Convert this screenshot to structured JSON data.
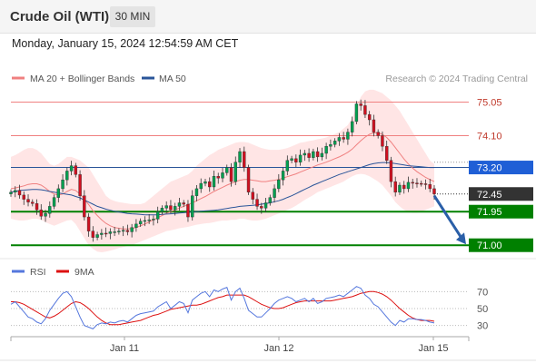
{
  "header": {
    "instrument": "Crude Oil (WTI)",
    "timeframe": "30 MIN"
  },
  "datetime": "Monday, January 15, 2024 12:54:59 AM CET",
  "colors": {
    "bollinger": "#f08080",
    "ma50": "#2a5599",
    "up": "#00a050",
    "down": "#d01020",
    "support": "#008000",
    "resistance": "#f08080",
    "current": "#333333",
    "rsi": "#5577dd",
    "rsi_ma": "#dd1111"
  },
  "chart_data": [
    {
      "type": "candlestick",
      "title": "",
      "legend": [
        "MA 20 + Bollinger Bands",
        "MA 50"
      ],
      "legend_position": "top-left",
      "watermark": "Research © 2024 Trading Central",
      "x_ticks": [
        "Jan 11",
        "Jan 12",
        "Jan 15"
      ],
      "ylim": [
        70.8,
        75.5
      ],
      "current_price": 72.45,
      "levels": [
        {
          "value": 75.05,
          "label": "75.05",
          "kind": "resistance"
        },
        {
          "value": 74.1,
          "label": "74.10",
          "kind": "resistance"
        },
        {
          "value": 73.2,
          "label": "73.20",
          "kind": "pivot"
        },
        {
          "value": 71.95,
          "label": "71.95",
          "kind": "support"
        },
        {
          "value": 71.0,
          "label": "71.00",
          "kind": "support"
        }
      ],
      "forecast_arrow": {
        "from": 72.4,
        "to": 71.05
      },
      "close": [
        72.5,
        72.55,
        72.42,
        72.3,
        72.22,
        72.18,
        72.0,
        71.82,
        71.9,
        72.1,
        72.35,
        72.6,
        72.85,
        73.1,
        73.25,
        73.0,
        72.4,
        71.8,
        71.4,
        71.22,
        71.3,
        71.34,
        71.33,
        71.38,
        71.38,
        71.4,
        71.42,
        71.38,
        71.5,
        71.6,
        71.68,
        71.7,
        71.72,
        71.74,
        71.95,
        72.05,
        72.12,
        72.0,
        72.1,
        72.2,
        72.16,
        71.8,
        72.4,
        72.6,
        72.75,
        72.8,
        72.65,
        72.95,
        72.9,
        73.05,
        73.2,
        72.8,
        73.35,
        73.65,
        73.2,
        72.5,
        72.3,
        72.1,
        72.05,
        72.2,
        72.35,
        72.6,
        72.85,
        73.1,
        73.4,
        73.45,
        73.35,
        73.55,
        73.6,
        73.48,
        73.65,
        73.5,
        73.6,
        73.8,
        73.85,
        73.95,
        74.05,
        74.0,
        74.2,
        74.5,
        75.0,
        74.95,
        74.7,
        74.55,
        74.2,
        74.1,
        73.8,
        73.4,
        72.8,
        72.5,
        72.7,
        72.6,
        72.78,
        72.76,
        72.75,
        72.74,
        72.72,
        72.6,
        72.45
      ],
      "bb_upper": [
        73.5,
        73.55,
        73.62,
        73.7,
        73.75,
        73.75,
        73.7,
        73.6,
        73.45,
        73.3,
        73.25,
        73.3,
        73.4,
        73.5,
        73.5,
        73.45,
        73.4,
        73.3,
        73.2,
        73.0,
        72.8,
        72.6,
        72.4,
        72.3,
        72.25,
        72.22,
        72.2,
        72.18,
        72.16,
        72.16,
        72.16,
        72.2,
        72.3,
        72.4,
        72.5,
        72.6,
        72.7,
        72.8,
        72.85,
        72.9,
        72.95,
        73.0,
        73.1,
        73.25,
        73.35,
        73.45,
        73.55,
        73.62,
        73.7,
        73.75,
        73.8,
        73.85,
        73.9,
        73.92,
        73.92,
        73.9,
        73.85,
        73.8,
        73.75,
        73.72,
        73.7,
        73.7,
        73.7,
        73.72,
        73.75,
        73.8,
        73.85,
        73.9,
        73.92,
        73.95,
        73.97,
        74.0,
        74.02,
        74.05,
        74.1,
        74.15,
        74.2,
        74.3,
        74.4,
        74.6,
        74.9,
        75.2,
        75.35,
        75.4,
        75.4,
        75.35,
        75.3,
        75.2,
        75.1,
        74.95,
        74.8,
        74.6,
        74.4,
        74.2,
        74.0,
        73.8,
        73.6,
        73.4,
        73.3
      ],
      "bb_lower": [
        71.75,
        71.72,
        71.7,
        71.7,
        71.72,
        71.75,
        71.75,
        71.72,
        71.65,
        71.6,
        71.55,
        71.6,
        71.65,
        71.7,
        71.72,
        71.6,
        71.4,
        71.2,
        71.0,
        70.9,
        70.82,
        70.8,
        70.82,
        70.85,
        70.88,
        70.92,
        70.95,
        70.98,
        71.0,
        71.05,
        71.1,
        71.15,
        71.2,
        71.25,
        71.3,
        71.35,
        71.4,
        71.42,
        71.45,
        71.48,
        71.5,
        71.52,
        71.55,
        71.58,
        71.6,
        71.62,
        71.63,
        71.65,
        71.68,
        71.7,
        71.7,
        71.72,
        71.72,
        71.75,
        71.75,
        71.72,
        71.7,
        71.7,
        71.72,
        71.75,
        71.8,
        71.85,
        71.9,
        71.95,
        72.0,
        72.05,
        72.12,
        72.2,
        72.28,
        72.35,
        72.42,
        72.5,
        72.55,
        72.6,
        72.65,
        72.7,
        72.75,
        72.8,
        72.88,
        72.95,
        73.0,
        73.02,
        73.0,
        72.95,
        72.88,
        72.8,
        72.7,
        72.55,
        72.4,
        72.22,
        72.1,
        72.0,
        71.95,
        71.92,
        71.92,
        71.95,
        72.0,
        72.05,
        72.1
      ],
      "bb_middle": [
        72.6,
        72.62,
        72.65,
        72.68,
        72.72,
        72.74,
        72.74,
        72.7,
        72.62,
        72.52,
        72.45,
        72.42,
        72.45,
        72.52,
        72.58,
        72.55,
        72.45,
        72.3,
        72.15,
        71.98,
        71.84,
        71.72,
        71.62,
        71.55,
        71.5,
        71.48,
        71.46,
        71.46,
        71.47,
        71.5,
        71.55,
        71.6,
        71.66,
        71.72,
        71.78,
        71.84,
        71.9,
        71.95,
        72.0,
        72.05,
        72.1,
        72.15,
        72.2,
        72.26,
        72.32,
        72.38,
        72.45,
        72.52,
        72.58,
        72.64,
        72.7,
        72.75,
        72.8,
        72.84,
        72.86,
        72.86,
        72.84,
        72.82,
        72.8,
        72.8,
        72.82,
        72.84,
        72.86,
        72.9,
        72.94,
        72.98,
        73.02,
        73.07,
        73.12,
        73.17,
        73.22,
        73.27,
        73.31,
        73.35,
        73.4,
        73.45,
        73.5,
        73.56,
        73.63,
        73.72,
        73.84,
        73.96,
        74.06,
        74.14,
        74.18,
        74.18,
        74.14,
        74.05,
        73.92,
        73.76,
        73.6,
        73.44,
        73.3,
        73.18,
        73.08,
        73.0,
        72.92,
        72.86,
        72.8
      ],
      "ma50": [
        72.5,
        72.52,
        72.55,
        72.56,
        72.57,
        72.58,
        72.58,
        72.57,
        72.55,
        72.52,
        72.5,
        72.48,
        72.46,
        72.44,
        72.42,
        72.38,
        72.34,
        72.28,
        72.22,
        72.16,
        72.1,
        72.06,
        72.02,
        71.99,
        71.96,
        71.94,
        71.92,
        71.9,
        71.89,
        71.88,
        71.87,
        71.86,
        71.86,
        71.86,
        71.86,
        71.87,
        71.88,
        71.89,
        71.9,
        71.91,
        71.92,
        71.93,
        71.94,
        71.95,
        71.96,
        71.97,
        71.98,
        71.99,
        72.0,
        72.02,
        72.04,
        72.06,
        72.08,
        72.1,
        72.11,
        72.12,
        72.13,
        72.14,
        72.16,
        72.18,
        72.2,
        72.23,
        72.26,
        72.3,
        72.35,
        72.4,
        72.46,
        72.52,
        72.58,
        72.64,
        72.7,
        72.75,
        72.8,
        72.85,
        72.9,
        72.95,
        73.0,
        73.04,
        73.08,
        73.12,
        73.16,
        73.2,
        73.24,
        73.28,
        73.31,
        73.33,
        73.34,
        73.34,
        73.33,
        73.31,
        73.29,
        73.27,
        73.25,
        73.24,
        73.23,
        73.22,
        73.21,
        73.2,
        73.2
      ]
    },
    {
      "type": "line",
      "title": "",
      "legend": [
        "RSI",
        "9MA"
      ],
      "legend_position": "top-left",
      "ylim": [
        20,
        80
      ],
      "y_ticks": [
        70,
        50,
        30
      ],
      "rsi": [
        55,
        58,
        52,
        46,
        40,
        38,
        34,
        32,
        38,
        48,
        55,
        62,
        68,
        70,
        64,
        52,
        40,
        30,
        28,
        26,
        31,
        33,
        32,
        34,
        33,
        35,
        36,
        34,
        38,
        42,
        44,
        45,
        46,
        47,
        52,
        55,
        58,
        50,
        54,
        58,
        56,
        45,
        60,
        64,
        68,
        70,
        64,
        72,
        70,
        73,
        75,
        60,
        70,
        74,
        62,
        48,
        44,
        40,
        40,
        45,
        50,
        56,
        60,
        62,
        64,
        62,
        58,
        60,
        62,
        58,
        62,
        56,
        58,
        62,
        63,
        64,
        66,
        64,
        68,
        72,
        76,
        74,
        66,
        62,
        55,
        52,
        46,
        40,
        34,
        30,
        36,
        34,
        38,
        38,
        37,
        37,
        36,
        34,
        33
      ],
      "rsi_ma": [
        58,
        58,
        57,
        55,
        52,
        49,
        46,
        43,
        40,
        39,
        41,
        44,
        48,
        52,
        56,
        58,
        57,
        54,
        50,
        45,
        40,
        36,
        33,
        31,
        31,
        31,
        32,
        33,
        34,
        35,
        36,
        38,
        40,
        42,
        43,
        45,
        47,
        49,
        50,
        51,
        52,
        53,
        54,
        54,
        55,
        57,
        59,
        61,
        63,
        64,
        66,
        66,
        66,
        66,
        66,
        64,
        61,
        58,
        55,
        53,
        51,
        50,
        50,
        51,
        53,
        55,
        57,
        58,
        59,
        59,
        59,
        59,
        59,
        59,
        59,
        60,
        61,
        62,
        63,
        64,
        66,
        68,
        69,
        70,
        70,
        69,
        67,
        64,
        60,
        55,
        50,
        46,
        42,
        39,
        37,
        36,
        36,
        36,
        35
      ]
    }
  ]
}
